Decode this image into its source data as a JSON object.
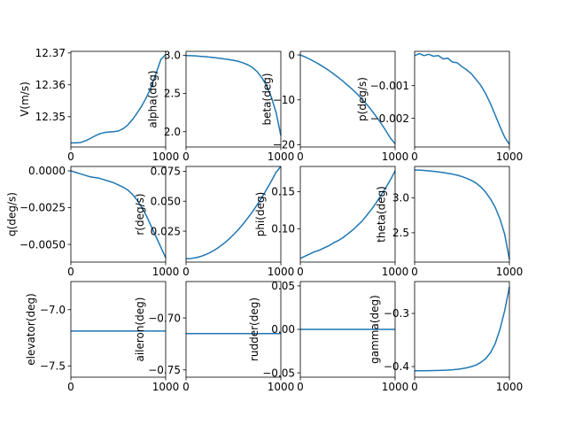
{
  "chart_data": [
    {
      "type": "line",
      "ylabel": "V(m/s)",
      "xlim": [
        0,
        1000
      ],
      "ylim": [
        12.3405,
        12.3705
      ],
      "xticks": [
        0,
        1000
      ],
      "xtick_labels": [
        "0",
        "1000"
      ],
      "yticks": [
        12.35,
        12.36,
        12.37
      ],
      "ytick_labels": [
        "12.35",
        "12.36",
        "12.37"
      ],
      "x": [
        0,
        50,
        100,
        150,
        200,
        250,
        300,
        350,
        400,
        450,
        500,
        550,
        600,
        650,
        700,
        750,
        800,
        850,
        900,
        950,
        1000
      ],
      "y": [
        12.3418,
        12.3418,
        12.3419,
        12.3424,
        12.3431,
        12.3439,
        12.3446,
        12.345,
        12.3452,
        12.3453,
        12.3455,
        12.3462,
        12.3474,
        12.3491,
        12.3512,
        12.3535,
        12.3562,
        12.3595,
        12.3637,
        12.368,
        12.3695
      ]
    },
    {
      "type": "line",
      "ylabel": "alpha(deg)",
      "xlim": [
        0,
        1000
      ],
      "ylim": [
        1.8,
        3.05
      ],
      "xticks": [
        0,
        1000
      ],
      "xtick_labels": [
        "0",
        "1000"
      ],
      "yticks": [
        2.0,
        2.5,
        3.0
      ],
      "ytick_labels": [
        "2.0",
        "2.5",
        "3.0"
      ],
      "x": [
        0,
        50,
        100,
        150,
        200,
        250,
        300,
        350,
        400,
        450,
        500,
        550,
        600,
        650,
        700,
        750,
        800,
        850,
        900,
        950,
        1000
      ],
      "y": [
        2.995,
        2.993,
        2.99,
        2.985,
        2.98,
        2.975,
        2.968,
        2.96,
        2.952,
        2.943,
        2.933,
        2.92,
        2.9,
        2.875,
        2.84,
        2.785,
        2.705,
        2.6,
        2.45,
        2.25,
        1.95
      ]
    },
    {
      "type": "line",
      "ylabel": "beta(deg)",
      "xlim": [
        0,
        1000
      ],
      "ylim": [
        -20.5,
        0.8
      ],
      "xticks": [
        0,
        1000
      ],
      "xtick_labels": [
        "0",
        "1000"
      ],
      "yticks": [
        0,
        -10,
        -20
      ],
      "ytick_labels": [
        "0",
        "−10",
        "−20"
      ],
      "x": [
        0,
        50,
        100,
        150,
        200,
        250,
        300,
        350,
        400,
        450,
        500,
        550,
        600,
        650,
        700,
        750,
        800,
        850,
        900,
        950,
        1000
      ],
      "y": [
        0,
        -0.45,
        -0.95,
        -1.5,
        -2.1,
        -2.75,
        -3.45,
        -4.2,
        -5.0,
        -5.85,
        -6.75,
        -7.7,
        -8.7,
        -9.8,
        -11.0,
        -12.3,
        -13.7,
        -15.2,
        -16.8,
        -18.5,
        -19.8
      ]
    },
    {
      "type": "line",
      "ylabel": "p(deg/s)",
      "xlim": [
        0,
        1000
      ],
      "ylim": [
        -0.00288,
        5e-05
      ],
      "xticks": [
        0,
        1000
      ],
      "xtick_labels": [
        "0",
        "1000"
      ],
      "yticks": [
        -0.001,
        -0.002
      ],
      "ytick_labels": [
        "−0.001",
        "−0.002"
      ],
      "x": [
        0,
        50,
        100,
        150,
        200,
        250,
        300,
        350,
        400,
        450,
        500,
        550,
        600,
        650,
        700,
        750,
        800,
        850,
        900,
        950,
        1000
      ],
      "y": [
        -8e-05,
        -2e-05,
        -8e-05,
        -4e-05,
        -0.0001,
        -8e-05,
        -0.00018,
        -0.00016,
        -0.00028,
        -0.0003,
        -0.00042,
        -0.00052,
        -0.00064,
        -0.00082,
        -0.001,
        -0.00125,
        -0.00155,
        -0.0019,
        -0.00225,
        -0.00258,
        -0.0028
      ]
    },
    {
      "type": "line",
      "ylabel": "q(deg/s)",
      "xlim": [
        0,
        1000
      ],
      "ylim": [
        -0.0062,
        0.0003
      ],
      "xticks": [
        0,
        1000
      ],
      "xtick_labels": [
        "0",
        "1000"
      ],
      "yticks": [
        0.0,
        -0.0025,
        -0.005
      ],
      "ytick_labels": [
        "0.0000",
        "−0.0025",
        "−0.0050"
      ],
      "x": [
        0,
        50,
        100,
        150,
        200,
        250,
        300,
        350,
        400,
        450,
        500,
        550,
        600,
        650,
        700,
        750,
        800,
        850,
        900,
        950,
        1000
      ],
      "y": [
        0,
        -0.0001,
        -0.0002,
        -0.0003,
        -0.0004,
        -0.00045,
        -0.0005,
        -0.0006,
        -0.0007,
        -0.0008,
        -0.00095,
        -0.0011,
        -0.0013,
        -0.0016,
        -0.002,
        -0.0025,
        -0.0031,
        -0.0038,
        -0.0045,
        -0.0052,
        -0.0059
      ]
    },
    {
      "type": "line",
      "ylabel": "r(deg/s)",
      "xlim": [
        0,
        1000
      ],
      "ylim": [
        -0.0008,
        0.079
      ],
      "xticks": [
        0,
        1000
      ],
      "xtick_labels": [
        "0",
        "1000"
      ],
      "yticks": [
        0.025,
        0.05,
        0.075
      ],
      "ytick_labels": [
        "0.025",
        "0.050",
        "0.075"
      ],
      "x": [
        0,
        50,
        100,
        150,
        200,
        250,
        300,
        350,
        400,
        450,
        500,
        550,
        600,
        650,
        700,
        750,
        800,
        850,
        900,
        950,
        1000
      ],
      "y": [
        0.002,
        0.0022,
        0.0028,
        0.0038,
        0.0052,
        0.007,
        0.0092,
        0.0118,
        0.0148,
        0.0182,
        0.022,
        0.0262,
        0.0308,
        0.0358,
        0.0412,
        0.047,
        0.0532,
        0.0598,
        0.0668,
        0.0742,
        0.079
      ]
    },
    {
      "type": "line",
      "ylabel": "phi(deg)",
      "xlim": [
        0,
        1000
      ],
      "ylim": [
        0.055,
        0.184
      ],
      "xticks": [
        0,
        1000
      ],
      "xtick_labels": [
        "0",
        "1000"
      ],
      "yticks": [
        0.1,
        0.15
      ],
      "ytick_labels": [
        "0.10",
        "0.15"
      ],
      "x": [
        0,
        50,
        100,
        150,
        200,
        250,
        300,
        350,
        400,
        450,
        500,
        550,
        600,
        650,
        700,
        750,
        800,
        850,
        900,
        950,
        1000
      ],
      "y": [
        0.06,
        0.063,
        0.066,
        0.069,
        0.071,
        0.074,
        0.077,
        0.081,
        0.084,
        0.088,
        0.093,
        0.098,
        0.104,
        0.11,
        0.118,
        0.126,
        0.135,
        0.145,
        0.155,
        0.166,
        0.178
      ]
    },
    {
      "type": "line",
      "ylabel": "theta(deg)",
      "xlim": [
        0,
        1000
      ],
      "ylim": [
        2.08,
        3.45
      ],
      "xticks": [
        0,
        1000
      ],
      "xtick_labels": [
        "0",
        "1000"
      ],
      "yticks": [
        2.5,
        3.0
      ],
      "ytick_labels": [
        "2.5",
        "3.0"
      ],
      "x": [
        0,
        50,
        100,
        150,
        200,
        250,
        300,
        350,
        400,
        450,
        500,
        550,
        600,
        650,
        700,
        750,
        800,
        850,
        900,
        950,
        1000
      ],
      "y": [
        3.4,
        3.397,
        3.393,
        3.387,
        3.38,
        3.372,
        3.363,
        3.352,
        3.34,
        3.325,
        3.305,
        3.28,
        3.25,
        3.21,
        3.155,
        3.08,
        2.985,
        2.865,
        2.7,
        2.48,
        2.12
      ]
    },
    {
      "type": "line",
      "ylabel": "elevator(deg)",
      "xlim": [
        0,
        1000
      ],
      "ylim": [
        -7.6,
        -6.75
      ],
      "xticks": [
        0,
        1000
      ],
      "xtick_labels": [
        "0",
        "1000"
      ],
      "yticks": [
        -7.0,
        -7.5
      ],
      "ytick_labels": [
        "−7.0",
        "−7.5"
      ],
      "x": [
        0,
        1000
      ],
      "y": [
        -7.19,
        -7.19
      ]
    },
    {
      "type": "line",
      "ylabel": "aileron(deg)",
      "xlim": [
        0,
        1000
      ],
      "ylim": [
        -0.757,
        -0.665
      ],
      "xticks": [
        0,
        1000
      ],
      "xtick_labels": [
        "0",
        "1000"
      ],
      "yticks": [
        -0.7,
        -0.75
      ],
      "ytick_labels": [
        "−0.70",
        "−0.75"
      ],
      "x": [
        0,
        1000
      ],
      "y": [
        -0.715,
        -0.715
      ]
    },
    {
      "type": "line",
      "ylabel": "rudder(deg)",
      "xlim": [
        0,
        1000
      ],
      "ylim": [
        -0.055,
        0.055
      ],
      "xticks": [
        0,
        1000
      ],
      "xtick_labels": [
        "0",
        "1000"
      ],
      "yticks": [
        0.05,
        0.0,
        -0.05
      ],
      "ytick_labels": [
        "0.05",
        "0.00",
        "−0.05"
      ],
      "x": [
        0,
        1000
      ],
      "y": [
        0,
        0
      ]
    },
    {
      "type": "line",
      "ylabel": "gamma(deg)",
      "xlim": [
        0,
        1000
      ],
      "ylim": [
        -0.42,
        -0.24
      ],
      "xticks": [
        0,
        1000
      ],
      "xtick_labels": [
        "0",
        "1000"
      ],
      "yticks": [
        -0.3,
        -0.4
      ],
      "ytick_labels": [
        "−0.3",
        "−0.4"
      ],
      "x": [
        0,
        50,
        100,
        150,
        200,
        250,
        300,
        350,
        400,
        450,
        500,
        550,
        600,
        650,
        700,
        750,
        800,
        850,
        900,
        950,
        1000
      ],
      "y": [
        -0.408,
        -0.408,
        -0.4079,
        -0.4078,
        -0.4076,
        -0.4073,
        -0.407,
        -0.4066,
        -0.406,
        -0.4052,
        -0.404,
        -0.4023,
        -0.4,
        -0.397,
        -0.392,
        -0.385,
        -0.374,
        -0.357,
        -0.33,
        -0.295,
        -0.25
      ]
    }
  ],
  "colors": {
    "line": "#1f77b4",
    "axes": "#000000",
    "background": "#ffffff"
  }
}
